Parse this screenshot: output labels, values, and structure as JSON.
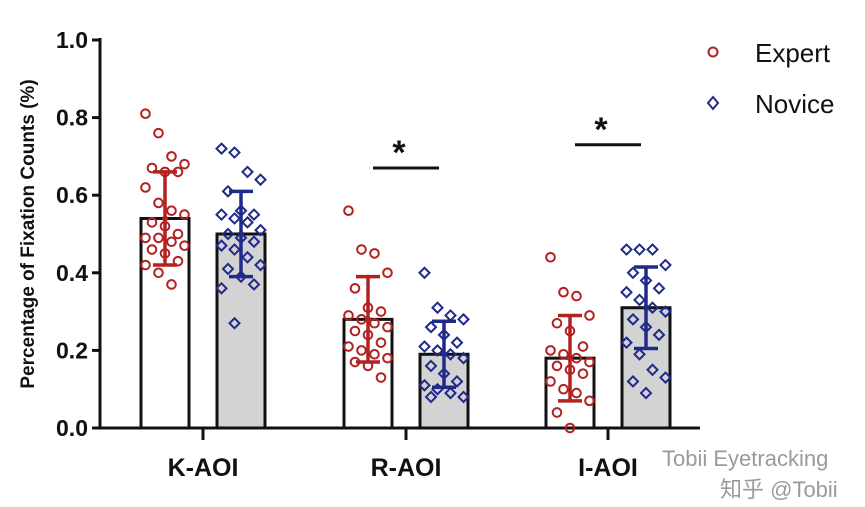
{
  "chart_data": {
    "type": "bar",
    "ylabel": "Percentage of Fixation Counts (%)",
    "xlabel": "",
    "ylim": [
      0,
      1.0
    ],
    "yticks": [
      "0.0",
      "0.2",
      "0.4",
      "0.6",
      "0.8",
      "1.0"
    ],
    "ytick_values": [
      0,
      0.2,
      0.4,
      0.6,
      0.8,
      1.0
    ],
    "categories": [
      "K-AOI",
      "R-AOI",
      "I-AOI"
    ],
    "legend_position": "top-right",
    "series": [
      {
        "name": "Expert",
        "color": "#b22222",
        "marker": "circle",
        "bar_fill": "#ffffff",
        "values": [
          0.54,
          0.28,
          0.18
        ],
        "sd": [
          0.12,
          0.11,
          0.11
        ],
        "points": [
          [
            0.81,
            0.76,
            0.7,
            0.68,
            0.67,
            0.66,
            0.66,
            0.62,
            0.58,
            0.56,
            0.55,
            0.53,
            0.52,
            0.5,
            0.49,
            0.49,
            0.48,
            0.47,
            0.46,
            0.45,
            0.43,
            0.42,
            0.4,
            0.37
          ],
          [
            0.56,
            0.46,
            0.45,
            0.4,
            0.36,
            0.31,
            0.3,
            0.29,
            0.28,
            0.27,
            0.26,
            0.25,
            0.24,
            0.22,
            0.21,
            0.2,
            0.19,
            0.18,
            0.17,
            0.16,
            0.13
          ],
          [
            0.44,
            0.35,
            0.34,
            0.29,
            0.27,
            0.25,
            0.21,
            0.2,
            0.19,
            0.18,
            0.17,
            0.16,
            0.15,
            0.14,
            0.12,
            0.1,
            0.09,
            0.07,
            0.04,
            0.0
          ]
        ]
      },
      {
        "name": "Novice",
        "color": "#1f2a8a",
        "marker": "diamond",
        "bar_fill": "#d3d3d3",
        "values": [
          0.5,
          0.19,
          0.31
        ],
        "sd": [
          0.11,
          0.085,
          0.105
        ],
        "points": [
          [
            0.72,
            0.71,
            0.66,
            0.64,
            0.61,
            0.56,
            0.55,
            0.55,
            0.54,
            0.53,
            0.51,
            0.5,
            0.49,
            0.48,
            0.47,
            0.46,
            0.44,
            0.42,
            0.41,
            0.39,
            0.37,
            0.36,
            0.27
          ],
          [
            0.4,
            0.31,
            0.29,
            0.28,
            0.26,
            0.24,
            0.22,
            0.21,
            0.2,
            0.19,
            0.18,
            0.16,
            0.14,
            0.12,
            0.11,
            0.1,
            0.09,
            0.08,
            0.08
          ],
          [
            0.46,
            0.46,
            0.46,
            0.42,
            0.4,
            0.38,
            0.36,
            0.35,
            0.33,
            0.31,
            0.3,
            0.28,
            0.26,
            0.24,
            0.22,
            0.19,
            0.15,
            0.13,
            0.12,
            0.09
          ]
        ]
      }
    ],
    "annotations": [
      {
        "category": "R-AOI",
        "text": "*",
        "line_value": 0.67
      },
      {
        "category": "I-AOI",
        "text": "*",
        "line_value": 0.73
      }
    ]
  },
  "watermark": {
    "line1": "Tobii Eyetracking",
    "line2": "知乎 @Tobii"
  }
}
